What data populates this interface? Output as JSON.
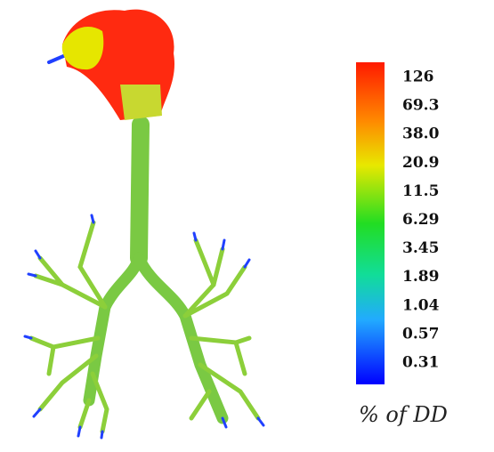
{
  "colorbar": {
    "labels": [
      "126",
      "69.3",
      "38.0",
      "20.9",
      "11.5",
      "6.29",
      "3.45",
      "1.89",
      "1.04",
      "0.57",
      "0.31"
    ],
    "caption": "% of DD"
  }
}
